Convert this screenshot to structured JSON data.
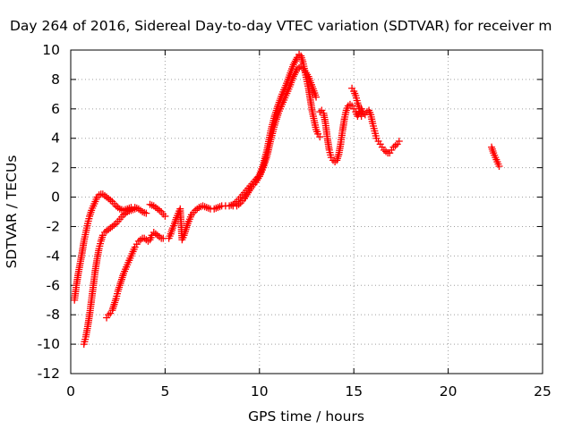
{
  "chart_data": {
    "type": "scatter",
    "title": "Day 264 of 2016, Sidereal Day-to-day VTEC variation (SDTVAR) for receiver m",
    "xlabel": "GPS time / hours",
    "ylabel": "SDTVAR / TECUs",
    "xlim": [
      0,
      25
    ],
    "ylim": [
      -12,
      10
    ],
    "xticks": [
      0,
      5,
      10,
      15,
      20,
      25
    ],
    "yticks": [
      -12,
      -10,
      -8,
      -6,
      -4,
      -2,
      0,
      2,
      4,
      6,
      8,
      10
    ],
    "grid": true,
    "legend": "none",
    "marker": "+",
    "marker_color": "#ff0000",
    "series": [
      {
        "points": [
          [
            0.2,
            -7.0
          ],
          [
            0.3,
            -6.0
          ],
          [
            0.4,
            -5.2
          ],
          [
            0.5,
            -4.5
          ],
          [
            0.6,
            -3.8
          ],
          [
            0.7,
            -3.0
          ],
          [
            0.8,
            -2.4
          ],
          [
            0.9,
            -1.8
          ],
          [
            1.0,
            -1.3
          ],
          [
            1.1,
            -0.9
          ],
          [
            1.2,
            -0.6
          ],
          [
            1.3,
            -0.3
          ],
          [
            1.4,
            0.0
          ],
          [
            1.5,
            0.15
          ],
          [
            1.6,
            0.2
          ],
          [
            1.7,
            0.2
          ],
          [
            1.8,
            0.1
          ],
          [
            1.9,
            0.0
          ],
          [
            2.0,
            -0.1
          ],
          [
            2.2,
            -0.3
          ],
          [
            2.4,
            -0.6
          ],
          [
            2.6,
            -0.8
          ],
          [
            2.8,
            -0.9
          ],
          [
            3.0,
            -0.8
          ],
          [
            3.2,
            -0.7
          ],
          [
            3.4,
            -0.7
          ],
          [
            3.6,
            -0.8
          ],
          [
            3.8,
            -1.0
          ],
          [
            4.0,
            -1.1
          ]
        ]
      },
      {
        "points": [
          [
            0.7,
            -10.0
          ],
          [
            0.8,
            -9.5
          ],
          [
            0.9,
            -8.8
          ],
          [
            1.0,
            -8.0
          ],
          [
            1.1,
            -7.0
          ],
          [
            1.2,
            -6.0
          ],
          [
            1.3,
            -5.0
          ],
          [
            1.4,
            -4.2
          ],
          [
            1.5,
            -3.5
          ],
          [
            1.6,
            -3.0
          ],
          [
            1.7,
            -2.6
          ],
          [
            1.8,
            -2.4
          ],
          [
            2.0,
            -2.2
          ],
          [
            2.2,
            -2.0
          ],
          [
            2.4,
            -1.8
          ],
          [
            2.6,
            -1.5
          ],
          [
            2.8,
            -1.2
          ],
          [
            3.0,
            -1.0
          ],
          [
            3.2,
            -0.9
          ],
          [
            3.4,
            -0.8
          ]
        ]
      },
      {
        "points": [
          [
            1.9,
            -8.2
          ],
          [
            2.0,
            -8.0
          ],
          [
            2.1,
            -7.9
          ],
          [
            2.2,
            -7.7
          ],
          [
            2.3,
            -7.3
          ],
          [
            2.4,
            -6.9
          ],
          [
            2.5,
            -6.4
          ],
          [
            2.6,
            -6.0
          ],
          [
            2.7,
            -5.6
          ],
          [
            2.8,
            -5.2
          ],
          [
            2.9,
            -4.9
          ],
          [
            3.0,
            -4.6
          ],
          [
            3.1,
            -4.3
          ],
          [
            3.2,
            -4.0
          ],
          [
            3.3,
            -3.7
          ],
          [
            3.4,
            -3.4
          ],
          [
            3.5,
            -3.2
          ],
          [
            3.6,
            -3.0
          ],
          [
            3.7,
            -2.9
          ],
          [
            3.8,
            -2.8
          ],
          [
            3.9,
            -2.8
          ],
          [
            4.0,
            -2.9
          ],
          [
            4.1,
            -3.0
          ],
          [
            4.2,
            -2.9
          ],
          [
            4.3,
            -2.6
          ],
          [
            4.4,
            -2.4
          ],
          [
            4.5,
            -2.5
          ],
          [
            4.6,
            -2.6
          ],
          [
            4.7,
            -2.7
          ],
          [
            4.8,
            -2.8
          ],
          [
            4.9,
            -2.8
          ]
        ]
      },
      {
        "points": [
          [
            4.2,
            -0.5
          ],
          [
            4.4,
            -0.6
          ],
          [
            4.6,
            -0.8
          ],
          [
            4.8,
            -1.0
          ],
          [
            5.0,
            -1.3
          ]
        ]
      },
      {
        "points": [
          [
            5.2,
            -2.8
          ],
          [
            5.3,
            -2.5
          ],
          [
            5.4,
            -2.1
          ],
          [
            5.5,
            -1.8
          ],
          [
            5.6,
            -1.4
          ],
          [
            5.7,
            -1.1
          ],
          [
            5.8,
            -0.8
          ],
          [
            5.9,
            -2.9
          ],
          [
            6.0,
            -2.6
          ],
          [
            6.1,
            -2.2
          ],
          [
            6.2,
            -1.8
          ],
          [
            6.3,
            -1.5
          ],
          [
            6.4,
            -1.2
          ],
          [
            6.6,
            -0.9
          ],
          [
            6.8,
            -0.7
          ],
          [
            7.0,
            -0.6
          ],
          [
            7.2,
            -0.7
          ],
          [
            7.4,
            -0.8
          ],
          [
            7.6,
            -0.8
          ],
          [
            7.8,
            -0.7
          ],
          [
            8.0,
            -0.6
          ],
          [
            8.2,
            -0.6
          ],
          [
            8.4,
            -0.6
          ],
          [
            8.6,
            -0.5
          ],
          [
            8.8,
            -0.3
          ],
          [
            9.0,
            0.0
          ],
          [
            9.2,
            0.3
          ],
          [
            9.4,
            0.6
          ],
          [
            9.6,
            0.9
          ],
          [
            9.8,
            1.2
          ],
          [
            10.0,
            1.5
          ],
          [
            10.2,
            2.2
          ],
          [
            10.4,
            3.2
          ],
          [
            10.6,
            4.5
          ],
          [
            10.8,
            5.5
          ],
          [
            11.0,
            6.3
          ],
          [
            11.2,
            7.0
          ],
          [
            11.4,
            7.6
          ],
          [
            11.6,
            8.3
          ],
          [
            11.8,
            9.0
          ],
          [
            12.0,
            9.5
          ],
          [
            12.1,
            9.7
          ],
          [
            12.2,
            9.6
          ],
          [
            12.3,
            9.2
          ],
          [
            12.4,
            8.6
          ],
          [
            12.5,
            8.0
          ],
          [
            12.6,
            7.4
          ],
          [
            12.7,
            6.6
          ],
          [
            12.8,
            5.8
          ],
          [
            12.9,
            5.2
          ],
          [
            13.0,
            4.6
          ],
          [
            13.1,
            4.3
          ],
          [
            13.2,
            4.1
          ]
        ]
      },
      {
        "points": [
          [
            8.6,
            -0.6
          ],
          [
            8.8,
            -0.6
          ],
          [
            9.0,
            -0.4
          ],
          [
            9.2,
            -0.1
          ],
          [
            9.4,
            0.3
          ],
          [
            9.6,
            0.7
          ],
          [
            9.8,
            1.0
          ],
          [
            10.0,
            1.4
          ],
          [
            10.2,
            2.0
          ],
          [
            10.4,
            2.8
          ],
          [
            10.6,
            3.9
          ],
          [
            10.8,
            4.9
          ],
          [
            11.0,
            5.7
          ],
          [
            11.2,
            6.3
          ],
          [
            11.4,
            6.9
          ],
          [
            11.6,
            7.5
          ],
          [
            11.8,
            8.2
          ],
          [
            12.0,
            8.7
          ],
          [
            12.2,
            8.9
          ],
          [
            12.4,
            8.6
          ],
          [
            12.6,
            8.2
          ],
          [
            12.8,
            7.5
          ],
          [
            13.0,
            6.8
          ]
        ]
      },
      {
        "points": [
          [
            13.2,
            5.8
          ],
          [
            13.3,
            5.9
          ],
          [
            13.4,
            5.7
          ],
          [
            13.5,
            5.0
          ],
          [
            13.6,
            4.0
          ],
          [
            13.7,
            3.2
          ],
          [
            13.8,
            2.7
          ],
          [
            13.9,
            2.5
          ],
          [
            14.0,
            2.4
          ],
          [
            14.1,
            2.5
          ],
          [
            14.2,
            2.9
          ],
          [
            14.3,
            3.6
          ],
          [
            14.4,
            4.5
          ],
          [
            14.5,
            5.3
          ],
          [
            14.6,
            5.9
          ],
          [
            14.7,
            6.2
          ],
          [
            14.8,
            6.3
          ],
          [
            14.9,
            6.2
          ],
          [
            15.0,
            6.0
          ],
          [
            15.1,
            5.8
          ],
          [
            15.2,
            5.5
          ],
          [
            15.3,
            5.8
          ],
          [
            15.4,
            6.0
          ],
          [
            15.5,
            5.7
          ],
          [
            15.6,
            5.6
          ],
          [
            15.7,
            5.8
          ],
          [
            15.8,
            5.9
          ],
          [
            15.9,
            5.6
          ],
          [
            16.0,
            5.0
          ],
          [
            16.1,
            4.5
          ],
          [
            16.2,
            4.0
          ],
          [
            16.3,
            3.8
          ],
          [
            16.4,
            3.6
          ],
          [
            16.5,
            3.4
          ],
          [
            16.6,
            3.2
          ],
          [
            16.7,
            3.1
          ],
          [
            16.8,
            3.0
          ],
          [
            16.9,
            3.0
          ],
          [
            17.0,
            3.2
          ],
          [
            17.1,
            3.4
          ],
          [
            17.2,
            3.5
          ],
          [
            17.3,
            3.6
          ],
          [
            17.4,
            3.8
          ]
        ]
      },
      {
        "points": [
          [
            14.9,
            7.4
          ],
          [
            15.0,
            7.2
          ],
          [
            15.1,
            6.9
          ],
          [
            15.2,
            6.4
          ],
          [
            15.3,
            6.0
          ],
          [
            15.4,
            5.5
          ]
        ]
      },
      {
        "points": [
          [
            22.3,
            3.4
          ],
          [
            22.4,
            3.0
          ],
          [
            22.5,
            2.7
          ],
          [
            22.6,
            2.4
          ],
          [
            22.7,
            2.1
          ]
        ]
      }
    ]
  }
}
